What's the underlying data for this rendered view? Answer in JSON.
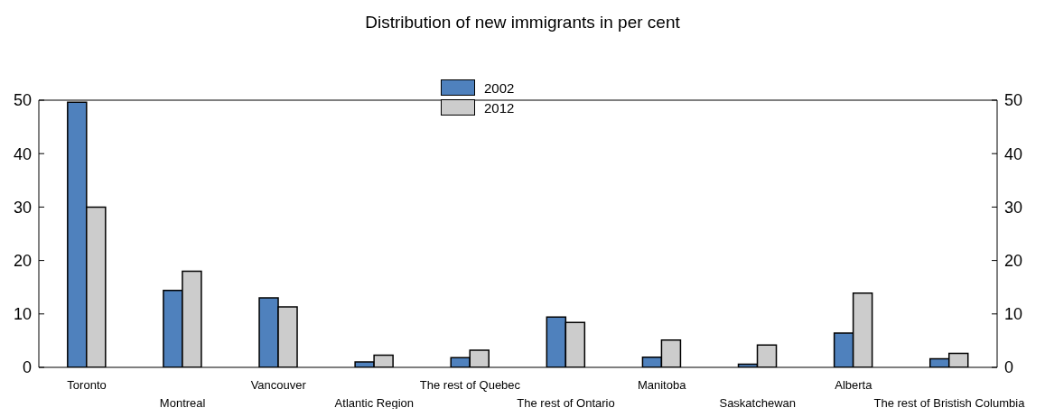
{
  "chart_data": {
    "type": "bar",
    "title": "Distribution of new immigrants in per cent",
    "categories": [
      "Toronto",
      "Montreal",
      "Vancouver",
      "Atlantic Region",
      "The rest of Quebec",
      "The rest of Ontario",
      "Manitoba",
      "Saskatchewan",
      "Alberta",
      "The rest of Bristish Columbia"
    ],
    "series": [
      {
        "name": "2002",
        "color": "#4f81bd",
        "values": [
          49.6,
          14.4,
          13,
          1.0,
          1.8,
          9.4,
          1.9,
          0.6,
          6.4,
          1.6
        ]
      },
      {
        "name": "2012",
        "color": "#cccccc",
        "values": [
          30,
          18,
          11.3,
          2.3,
          3.2,
          8.4,
          5.1,
          4.2,
          13.9,
          2.6
        ]
      }
    ],
    "ylim": [
      0,
      50
    ],
    "yticks": [
      0,
      10,
      20,
      30,
      40,
      50
    ],
    "y2lim": [
      0,
      50
    ],
    "y2ticks": [
      0,
      10,
      20,
      30,
      40,
      50
    ],
    "grid": false,
    "legend": "top"
  }
}
